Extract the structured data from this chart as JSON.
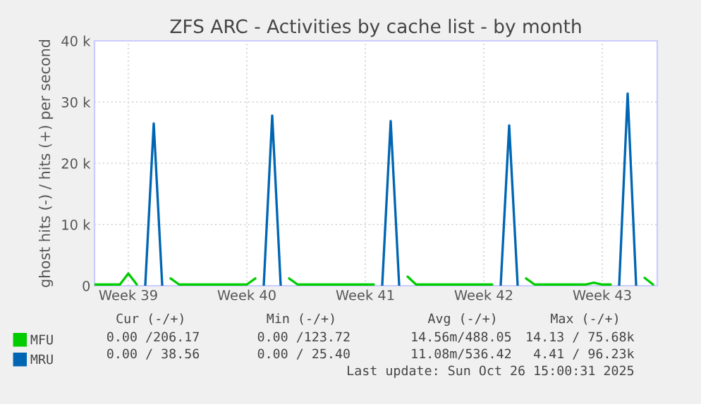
{
  "chart_data": {
    "type": "line",
    "title": "ZFS ARC - Activities by cache list - by month",
    "ylabel": "ghost hits (-) / hits (+) per second",
    "categories": [
      null,
      null,
      null,
      null,
      "Week 39",
      null,
      null,
      null,
      null,
      null,
      null,
      null,
      null,
      null,
      null,
      null,
      null,
      null,
      "Week 40",
      null,
      null,
      null,
      null,
      null,
      null,
      null,
      null,
      null,
      null,
      null,
      null,
      null,
      "Week 41",
      null,
      null,
      null,
      null,
      null,
      null,
      null,
      null,
      null,
      null,
      null,
      null,
      null,
      "Week 42",
      null,
      null,
      null,
      null,
      null,
      null,
      null,
      null,
      null,
      null,
      null,
      null,
      null,
      "Week 43",
      null,
      null,
      null,
      null,
      null,
      null
    ],
    "ylim": [
      0,
      40000
    ],
    "yticks": [
      {
        "value": 0,
        "label": "0"
      },
      {
        "value": 10000,
        "label": "10 k"
      },
      {
        "value": 20000,
        "label": "20 k"
      },
      {
        "value": 30000,
        "label": "30 k"
      },
      {
        "value": 40000,
        "label": "40 k"
      }
    ],
    "grid": true,
    "legend": "bottom",
    "series": [
      {
        "name": "MFU",
        "color": "#00cc00",
        "values": [
          200,
          200,
          200,
          200,
          2000,
          200,
          null,
          null,
          null,
          1200,
          200,
          200,
          200,
          200,
          200,
          200,
          200,
          200,
          200,
          1200,
          null,
          null,
          null,
          1200,
          200,
          200,
          200,
          200,
          200,
          200,
          200,
          200,
          200,
          200,
          null,
          null,
          null,
          1500,
          200,
          200,
          200,
          200,
          200,
          200,
          200,
          200,
          200,
          200,
          null,
          null,
          null,
          1200,
          200,
          200,
          200,
          200,
          200,
          200,
          200,
          500,
          200,
          200,
          null,
          null,
          null,
          1300,
          200
        ]
      },
      {
        "name": "MRU",
        "color": "#0066b3",
        "values": [
          null,
          null,
          null,
          null,
          null,
          null,
          100,
          26500,
          100,
          null,
          null,
          null,
          null,
          null,
          null,
          null,
          null,
          null,
          null,
          null,
          100,
          27800,
          100,
          null,
          null,
          null,
          null,
          null,
          null,
          null,
          null,
          null,
          null,
          null,
          100,
          26900,
          100,
          null,
          null,
          null,
          null,
          null,
          null,
          null,
          null,
          null,
          null,
          null,
          100,
          26200,
          100,
          null,
          null,
          null,
          null,
          null,
          null,
          null,
          null,
          null,
          null,
          null,
          100,
          31400,
          100,
          null,
          null
        ]
      }
    ],
    "annotations": [
      "Cur (-/+)",
      "Min (-/+)",
      "Avg (-/+)",
      "Max (-/+)",
      "0.00 /206.17",
      "0.00 /123.72",
      "14.56m/488.05",
      "14.13 / 75.68k",
      "0.00 / 38.56",
      "0.00 / 25.40",
      "11.08m/536.42",
      "4.41 / 96.23k",
      "Last update: Sun Oct 26 15:00:31 2025"
    ]
  }
}
